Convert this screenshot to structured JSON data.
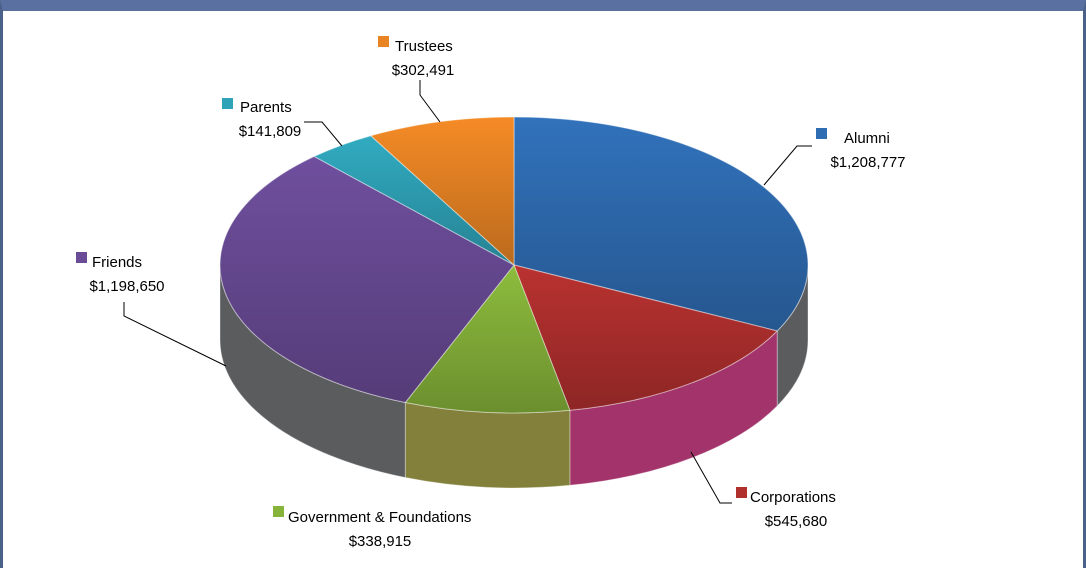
{
  "chart_data": {
    "type": "pie",
    "style": "3d-exploded-none",
    "legend_placement": "data labels with leader lines",
    "slices": [
      {
        "name": "Alumni",
        "value_label": "$1,208,777",
        "value": 1208777,
        "color": "#2f6db3"
      },
      {
        "name": "Corporations",
        "value_label": "$545,680",
        "value": 545680,
        "color": "#b0302e"
      },
      {
        "name": "Government & Foundations",
        "value_label": "$338,915",
        "value": 338915,
        "color": "#86b33a"
      },
      {
        "name": "Friends",
        "value_label": "$1,198,650",
        "value": 1198650,
        "color": "#6a4b96"
      },
      {
        "name": "Parents",
        "value_label": "$141,809",
        "value": 141809,
        "color": "#2fa3b8"
      },
      {
        "name": "Trustees",
        "value_label": "$302,491",
        "value": 302491,
        "color": "#e98424"
      }
    ]
  }
}
